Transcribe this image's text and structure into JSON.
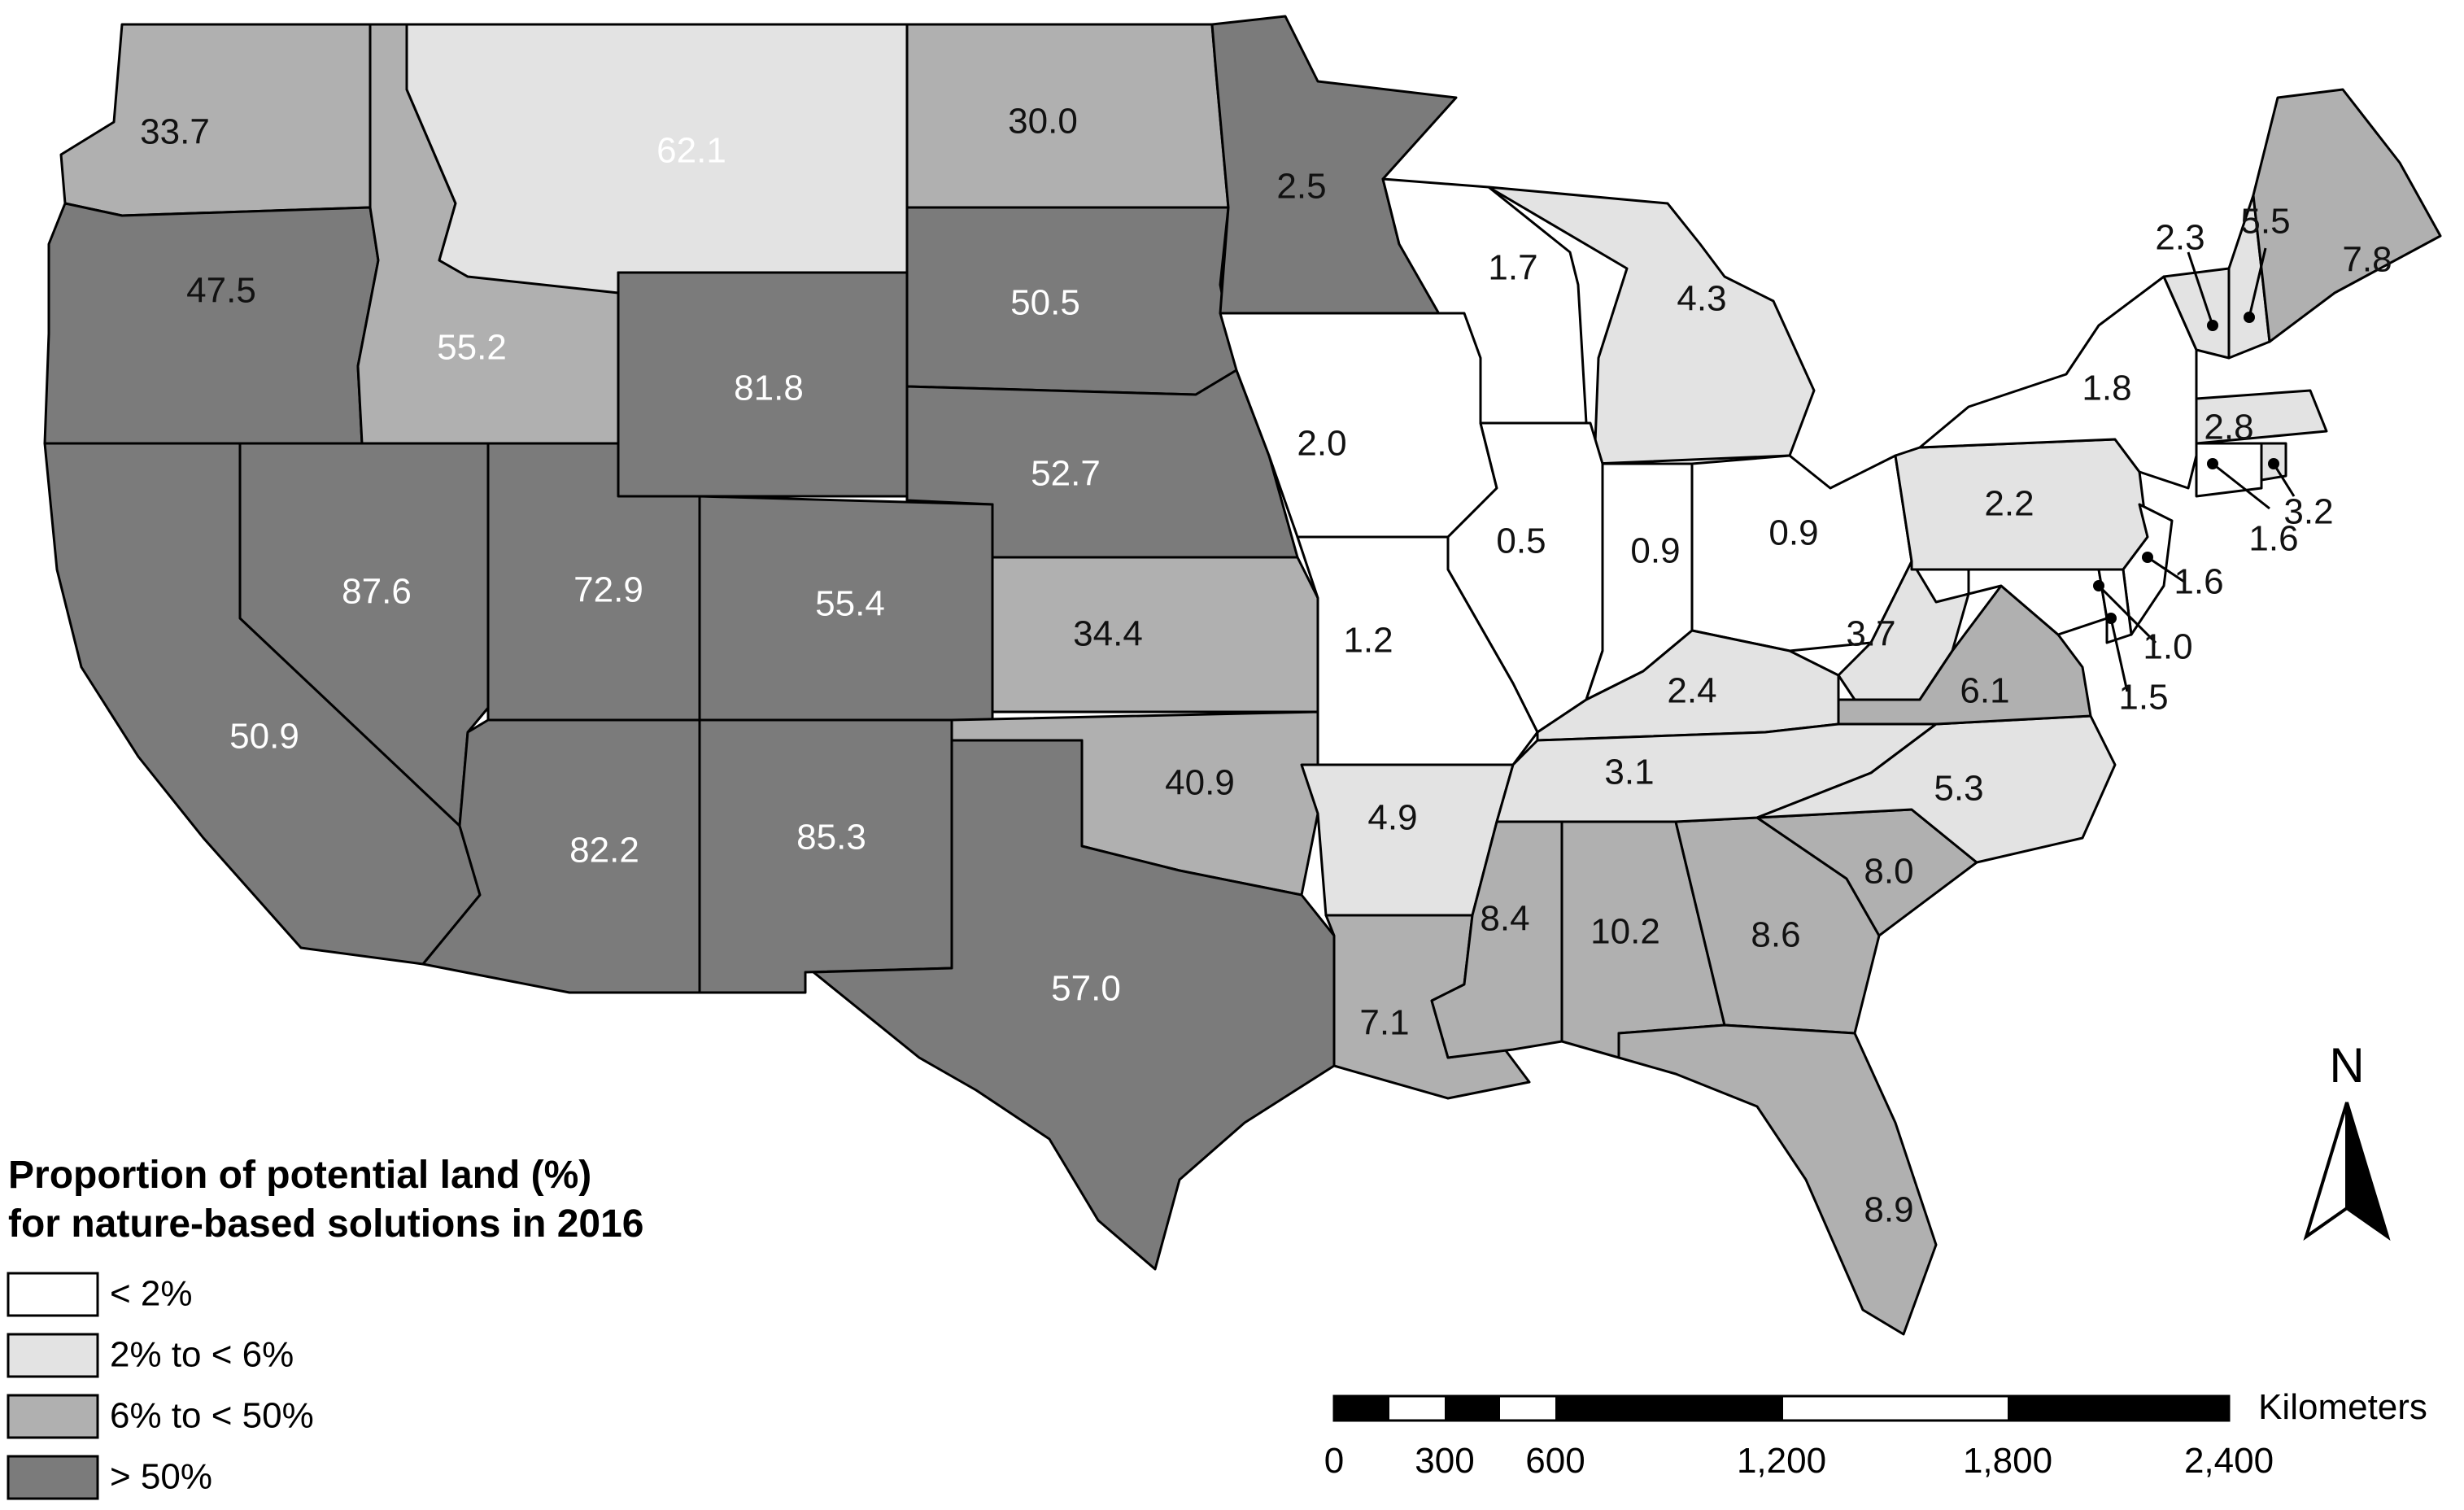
{
  "legend": {
    "title_line1": "Proportion of potential land (%)",
    "title_line2": "for nature-based solutions in 2016",
    "classes": [
      {
        "label": "< 2%",
        "color": "#ffffff"
      },
      {
        "label": "2%  to < 6%",
        "color": "#e3e3e3"
      },
      {
        "label": "6%  to < 50%",
        "color": "#b0b0b0"
      },
      {
        "label": "> 50%",
        "color": "#7b7b7b"
      }
    ]
  },
  "scale_bar": {
    "unit": "Kilometers",
    "ticks": [
      "0",
      "300",
      "600",
      "1,200",
      "1,800",
      "2,400"
    ]
  },
  "north_arrow": {
    "label": "N"
  },
  "states": [
    {
      "label": "33.7",
      "class": 2
    },
    {
      "label": "62.1",
      "class": 3
    },
    {
      "label": "30.0",
      "class": 2
    },
    {
      "label": "2.5",
      "class": 1
    },
    {
      "label": "47.5",
      "class": 2
    },
    {
      "label": "55.2",
      "class": 3
    },
    {
      "label": "50.5",
      "class": 3
    },
    {
      "label": "81.8",
      "class": 3
    },
    {
      "label": "52.7",
      "class": 3
    },
    {
      "label": "1.7",
      "class": 0
    },
    {
      "label": "4.3",
      "class": 1
    },
    {
      "label": "2.0",
      "class": 0
    },
    {
      "label": "87.6",
      "class": 3
    },
    {
      "label": "72.9",
      "class": 3
    },
    {
      "label": "55.4",
      "class": 3
    },
    {
      "label": "34.4",
      "class": 2
    },
    {
      "label": "0.5",
      "class": 0
    },
    {
      "label": "0.9",
      "class": 0
    },
    {
      "label": "0.9",
      "class": 0
    },
    {
      "label": "1.2",
      "class": 0
    },
    {
      "label": "50.9",
      "class": 3
    },
    {
      "label": "82.2",
      "class": 3
    },
    {
      "label": "85.3",
      "class": 3
    },
    {
      "label": "40.9",
      "class": 2
    },
    {
      "label": "57.0",
      "class": 3
    },
    {
      "label": "4.9",
      "class": 1
    },
    {
      "label": "7.1",
      "class": 2
    },
    {
      "label": "8.4",
      "class": 2
    },
    {
      "label": "10.2",
      "class": 2
    },
    {
      "label": "8.6",
      "class": 2
    },
    {
      "label": "8.0",
      "class": 2
    },
    {
      "label": "8.9",
      "class": 2
    },
    {
      "label": "2.4",
      "class": 1
    },
    {
      "label": "3.1",
      "class": 1
    },
    {
      "label": "5.3",
      "class": 1
    },
    {
      "label": "3.7",
      "class": 1
    },
    {
      "label": "6.1",
      "class": 2
    },
    {
      "label": "2.2",
      "class": 1
    },
    {
      "label": "1.8",
      "class": 0
    },
    {
      "label": "2.3",
      "class": 1
    },
    {
      "label": "5.5",
      "class": 1
    },
    {
      "label": "7.8",
      "class": 2
    },
    {
      "label": "2.8",
      "class": 1
    },
    {
      "label": "1.6",
      "class": 0
    },
    {
      "label": "3.2",
      "class": 1
    },
    {
      "label": "1.6",
      "class": 0
    },
    {
      "label": "1.0",
      "class": 0
    },
    {
      "label": "1.5",
      "class": 0
    }
  ]
}
